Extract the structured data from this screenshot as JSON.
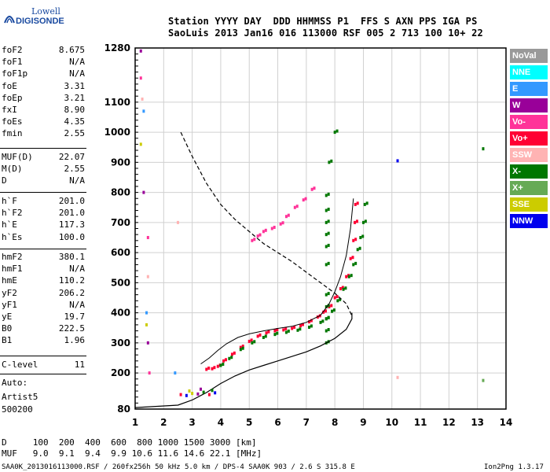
{
  "logo": {
    "line1": "Lowell",
    "line2": "DIGISONDE"
  },
  "header": {
    "row1": "Station YYYY DAY  DDD HHMMSS P1  FFS S AXN PPS IGA PS",
    "row2": "SaoLuis 2013 Jan16 016 113000 RSF 005 2 713 100 10+ 22"
  },
  "params": {
    "g1": [
      {
        "name": "foF2",
        "value": "8.675"
      },
      {
        "name": "foF1",
        "value": "N/A"
      },
      {
        "name": "foF1p",
        "value": "N/A"
      },
      {
        "name": "foE",
        "value": "3.31"
      },
      {
        "name": "foEp",
        "value": "3.21"
      },
      {
        "name": "fxI",
        "value": "8.90"
      },
      {
        "name": "foEs",
        "value": "4.35"
      },
      {
        "name": "fmin",
        "value": "2.55"
      }
    ],
    "g2": [
      {
        "name": "MUF(D)",
        "value": "22.07"
      },
      {
        "name": "M(D)",
        "value": "2.55"
      },
      {
        "name": "D",
        "value": "N/A"
      }
    ],
    "g3": [
      {
        "name": "h`F",
        "value": "201.0"
      },
      {
        "name": "h`F2",
        "value": "201.0"
      },
      {
        "name": "h`E",
        "value": "117.3"
      },
      {
        "name": "h`Es",
        "value": "100.0"
      }
    ],
    "g4": [
      {
        "name": "hmF2",
        "value": "380.1"
      },
      {
        "name": "hmF1",
        "value": "N/A"
      },
      {
        "name": "hmE",
        "value": "110.2"
      },
      {
        "name": "yF2",
        "value": "206.2"
      },
      {
        "name": "yF1",
        "value": "N/A"
      },
      {
        "name": "yE",
        "value": "19.7"
      },
      {
        "name": "B0",
        "value": "222.5"
      },
      {
        "name": "B1",
        "value": "1.96"
      }
    ],
    "g5": [
      {
        "name": "C-level",
        "value": "11"
      }
    ],
    "auto_label": "Auto:",
    "artist": "Artist5",
    "artist_ver": "500200"
  },
  "legend": [
    {
      "label": "NoVal",
      "bg": "#999999",
      "fg": "#ffffff"
    },
    {
      "label": "NNE",
      "bg": "#00ffff",
      "fg": "#ffffff"
    },
    {
      "label": "E",
      "bg": "#3399ff",
      "fg": "#ffffff"
    },
    {
      "label": "W",
      "bg": "#990099",
      "fg": "#ffffff"
    },
    {
      "label": "Vo-",
      "bg": "#ff3399",
      "fg": "#ffffff"
    },
    {
      "label": "Vo+",
      "bg": "#ff0033",
      "fg": "#ffffff"
    },
    {
      "label": "SSW",
      "bg": "#ffb3b3",
      "fg": "#ffffff"
    },
    {
      "label": "X-",
      "bg": "#007700",
      "fg": "#ffffff"
    },
    {
      "label": "X+",
      "bg": "#66aa55",
      "fg": "#ffffff"
    },
    {
      "label": "SSE",
      "bg": "#cccc00",
      "fg": "#ffffff"
    },
    {
      "label": "NNW",
      "bg": "#0000ee",
      "fg": "#ffffff"
    }
  ],
  "muf_table": {
    "row1": "D     100  200  400  600  800 1000 1500 3000 [km]",
    "row2": "MUF   9.0  9.1  9.4  9.9 10.6 11.6 14.6 22.1 [MHz]"
  },
  "footer": {
    "left": "SAA0K_2013016113000.RSF / 260fx256h 50 kHz 5.0 km / DPS-4 SAA0K 903 / 2.6 S 315.8 E",
    "right": "Ion2Png 1.3.17"
  },
  "chart_data": {
    "type": "scatter",
    "x_ticks": [
      1,
      2,
      3,
      4,
      5,
      6,
      7,
      8,
      9,
      10,
      11,
      12,
      13,
      14
    ],
    "y_ticks": [
      80,
      200,
      300,
      400,
      500,
      600,
      700,
      800,
      900,
      1000,
      1100,
      1280
    ],
    "xlim": [
      1,
      14
    ],
    "ylim": [
      80,
      1280
    ],
    "grid": true,
    "colors": {
      "ordinary": "#ff0033",
      "ordinary_alt": "#ff3399",
      "w": "#990099",
      "x_minus": "#007700",
      "x_plus": "#66aa55",
      "ssw": "#ffb3b3",
      "nne": "#00ffff",
      "e": "#3399ff",
      "nnw": "#0000ee",
      "sse": "#cccc00"
    },
    "series": [
      {
        "type": "scatter-trace",
        "color": "#ff0033",
        "points": [
          [
            3.5,
            212
          ],
          [
            3.7,
            214
          ],
          [
            3.9,
            222
          ],
          [
            4.1,
            240
          ],
          [
            4.4,
            262
          ],
          [
            4.7,
            285
          ],
          [
            5.0,
            305
          ],
          [
            5.3,
            322
          ],
          [
            5.6,
            333
          ],
          [
            5.9,
            340
          ],
          [
            6.2,
            343
          ],
          [
            6.5,
            348
          ],
          [
            6.8,
            357
          ],
          [
            7.1,
            370
          ],
          [
            7.4,
            386
          ],
          [
            7.6,
            402
          ],
          [
            7.8,
            420
          ],
          [
            8.0,
            450
          ],
          [
            8.2,
            480
          ],
          [
            8.4,
            520
          ],
          [
            8.55,
            580
          ],
          [
            8.65,
            640
          ],
          [
            8.7,
            700
          ],
          [
            8.72,
            760
          ]
        ]
      },
      {
        "type": "scatter-trace",
        "color": "#ff3399",
        "points": [
          [
            5.1,
            640
          ],
          [
            5.3,
            655
          ],
          [
            5.5,
            670
          ],
          [
            5.8,
            680
          ],
          [
            6.1,
            695
          ],
          [
            6.3,
            720
          ],
          [
            6.6,
            750
          ],
          [
            6.9,
            775
          ],
          [
            7.2,
            810
          ]
        ]
      },
      {
        "type": "scatter-trace",
        "color": "#007700",
        "points": [
          [
            4.0,
            225
          ],
          [
            4.3,
            248
          ],
          [
            4.7,
            278
          ],
          [
            5.1,
            300
          ],
          [
            5.5,
            318
          ],
          [
            5.9,
            328
          ],
          [
            6.3,
            335
          ],
          [
            6.7,
            342
          ],
          [
            7.1,
            352
          ],
          [
            7.5,
            368
          ],
          [
            7.7,
            380
          ],
          [
            7.9,
            405
          ],
          [
            8.1,
            440
          ],
          [
            8.3,
            478
          ],
          [
            8.5,
            520
          ],
          [
            8.65,
            560
          ],
          [
            8.8,
            610
          ],
          [
            8.9,
            650
          ],
          [
            9.0,
            700
          ],
          [
            9.05,
            760
          ]
        ]
      },
      {
        "type": "scatter-trace",
        "color": "#007700",
        "points": [
          [
            7.7,
            300
          ],
          [
            7.7,
            340
          ],
          [
            7.7,
            380
          ],
          [
            7.7,
            420
          ],
          [
            7.7,
            460
          ],
          [
            7.7,
            560
          ],
          [
            7.7,
            620
          ],
          [
            7.7,
            660
          ],
          [
            7.7,
            700
          ],
          [
            7.7,
            740
          ],
          [
            7.7,
            790
          ],
          [
            7.8,
            900
          ],
          [
            8.0,
            1000
          ]
        ]
      }
    ],
    "profile_dashed": [
      [
        2.6,
        1000
      ],
      [
        3.0,
        920
      ],
      [
        3.5,
        830
      ],
      [
        4.0,
        760
      ],
      [
        4.5,
        710
      ],
      [
        5.0,
        670
      ],
      [
        5.5,
        630
      ],
      [
        6.0,
        600
      ],
      [
        6.5,
        570
      ],
      [
        7.0,
        535
      ],
      [
        7.5,
        500
      ],
      [
        8.0,
        465
      ],
      [
        8.4,
        430
      ],
      [
        8.6,
        390
      ]
    ],
    "profile_solid": [
      [
        1.0,
        85
      ],
      [
        2.5,
        93
      ],
      [
        3.0,
        110
      ],
      [
        3.5,
        135
      ],
      [
        4.0,
        165
      ],
      [
        4.5,
        190
      ],
      [
        5.0,
        210
      ],
      [
        5.5,
        225
      ],
      [
        6.0,
        240
      ],
      [
        6.5,
        255
      ],
      [
        7.0,
        270
      ],
      [
        7.5,
        290
      ],
      [
        8.0,
        315
      ],
      [
        8.4,
        345
      ],
      [
        8.6,
        380
      ],
      [
        8.6,
        400
      ]
    ],
    "model_curve_solid": [
      [
        3.3,
        230
      ],
      [
        3.6,
        250
      ],
      [
        3.9,
        275
      ],
      [
        4.2,
        297
      ],
      [
        4.6,
        318
      ],
      [
        5.0,
        330
      ],
      [
        5.5,
        340
      ],
      [
        6.0,
        348
      ],
      [
        6.5,
        355
      ],
      [
        7.0,
        368
      ],
      [
        7.5,
        392
      ],
      [
        7.8,
        430
      ],
      [
        8.0,
        470
      ],
      [
        8.2,
        520
      ],
      [
        8.4,
        590
      ],
      [
        8.55,
        680
      ],
      [
        8.65,
        780
      ]
    ]
  }
}
